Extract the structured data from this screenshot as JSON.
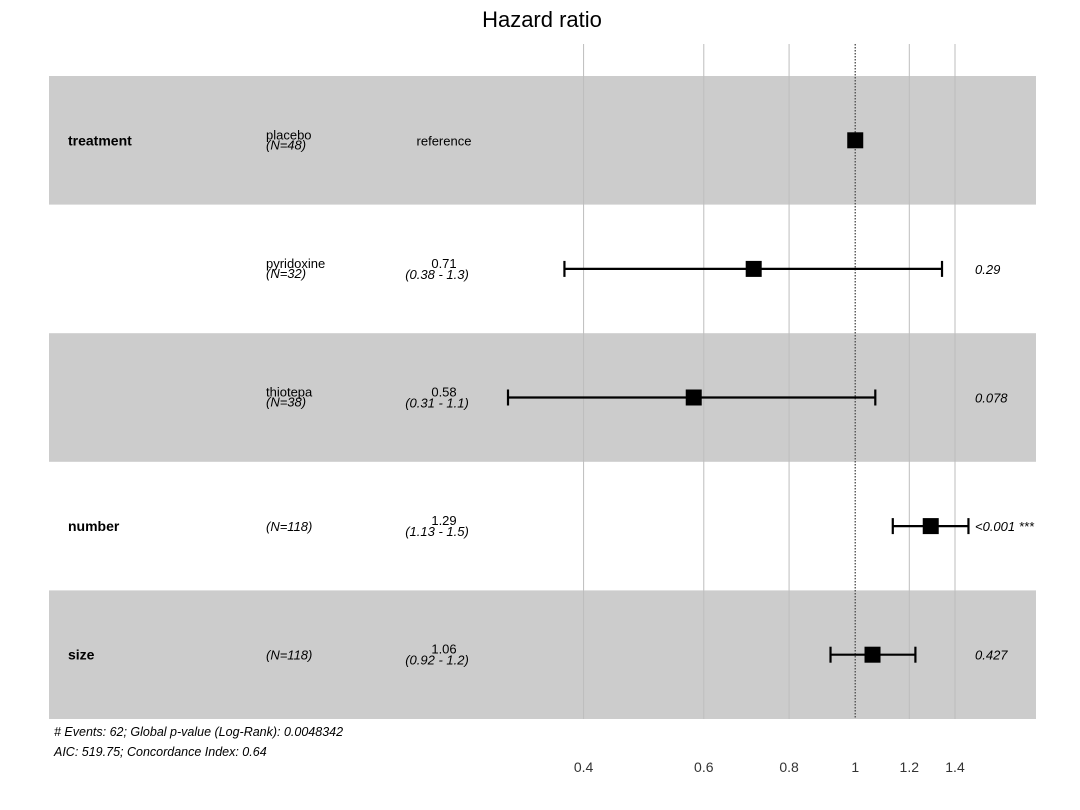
{
  "chart_data": {
    "type": "forest",
    "title": "Hazard ratio",
    "x_scale": "log",
    "xlim": [
      0.35,
      1.45
    ],
    "ticks": [
      "0.4",
      "0.6",
      "0.8",
      "1",
      "1.2",
      "1.4"
    ],
    "tick_values": [
      0.4,
      0.6,
      0.8,
      1.0,
      1.2,
      1.4
    ],
    "reference_value": 1,
    "rows": [
      {
        "variable": "treatment",
        "level": "placebo",
        "n": "(N=48)",
        "estimate": "reference",
        "ci": "",
        "p_value": "",
        "hr": 1.0,
        "lower": null,
        "upper": null
      },
      {
        "variable": "",
        "level": "pyridoxine",
        "n": "(N=32)",
        "estimate": "0.71",
        "ci": "(0.38 - 1.3)",
        "p_value": "0.29",
        "hr": 0.71,
        "lower": 0.375,
        "upper": 1.34
      },
      {
        "variable": "",
        "level": "thiotepa",
        "n": "(N=38)",
        "estimate": "0.58",
        "ci": "(0.31 - 1.1)",
        "p_value": "0.078",
        "hr": 0.58,
        "lower": 0.31,
        "upper": 1.07
      },
      {
        "variable": "number",
        "level": "",
        "n": "(N=118)",
        "estimate": "1.29",
        "ci": "(1.13 - 1.5)",
        "p_value": "<0.001 ***",
        "hr": 1.29,
        "lower": 1.135,
        "upper": 1.465
      },
      {
        "variable": "size",
        "level": "",
        "n": "(N=118)",
        "estimate": "1.06",
        "ci": "(0.92 - 1.2)",
        "p_value": "0.427",
        "hr": 1.06,
        "lower": 0.92,
        "upper": 1.225
      }
    ],
    "footnote": [
      "# Events: 62; Global p-value (Log-Rank): 0.0048342",
      "AIC: 519.75; Concordance Index: 0.64"
    ]
  },
  "colors": {
    "stripe": "#cccccc",
    "grid": "#bdbdbd",
    "mark": "#000000",
    "background": "#ffffff"
  }
}
